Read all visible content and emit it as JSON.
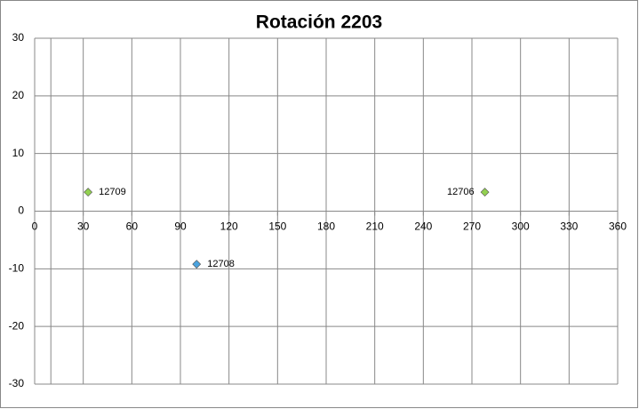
{
  "chart_data": {
    "type": "scatter",
    "title": "Rotación 2203",
    "x": [
      33,
      100,
      278
    ],
    "values": [
      3.3,
      -9.2,
      3.3
    ],
    "point_labels": [
      "12709",
      "12708",
      "12706"
    ],
    "colors": [
      "#92d050",
      "#4aa3df",
      "#92d050"
    ],
    "xlim": [
      0,
      360
    ],
    "xticks": [
      0,
      30,
      60,
      90,
      120,
      150,
      180,
      210,
      240,
      270,
      300,
      330,
      360
    ],
    "ylim": [
      -30,
      30
    ],
    "yticks": [
      -30,
      -20,
      -10,
      0,
      10,
      20,
      30
    ],
    "y_axis_crosses": 10,
    "grid": true
  }
}
